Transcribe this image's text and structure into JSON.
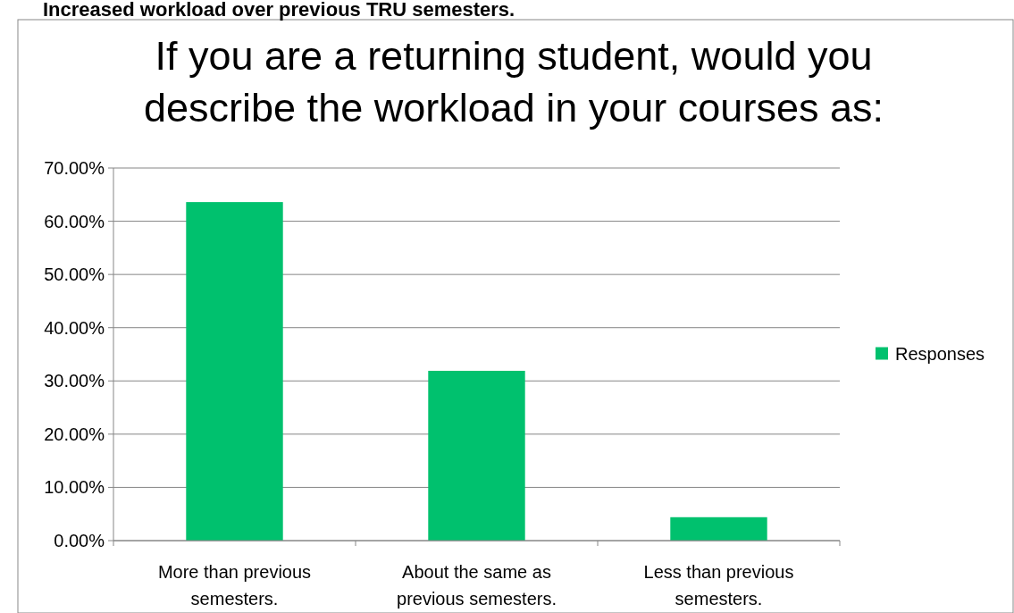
{
  "chart_data": {
    "type": "bar",
    "title": "If you are a returning student, would you describe the workload in your courses as:",
    "annotations": [
      "Increased workload over previous TRU semesters."
    ],
    "categories": [
      "More than previous semesters.",
      "About the same as previous semesters.",
      "Less than previous semesters."
    ],
    "series": [
      {
        "name": "Responses",
        "color": "#00c16e",
        "values": [
          63.6,
          31.9,
          4.4
        ]
      }
    ],
    "ylim": [
      0,
      70
    ],
    "yticks": [
      {
        "value": 0,
        "label": "0.00%"
      },
      {
        "value": 10,
        "label": "10.00%"
      },
      {
        "value": 20,
        "label": "20.00%"
      },
      {
        "value": 30,
        "label": "30.00%"
      },
      {
        "value": 40,
        "label": "40.00%"
      },
      {
        "value": 50,
        "label": "50.00%"
      },
      {
        "value": 60,
        "label": "60.00%"
      },
      {
        "value": 70,
        "label": "70.00%"
      }
    ],
    "grid": "y",
    "legend": "right"
  }
}
